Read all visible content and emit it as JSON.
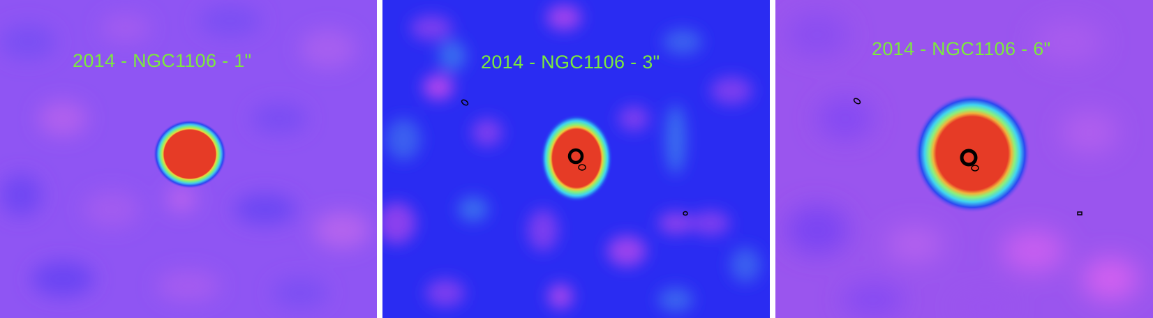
{
  "panels": [
    {
      "label": "2014 - NGC1106 - 1\""
    },
    {
      "label": "2014 - NGC1106 - 3\""
    },
    {
      "label": "2014 - NGC1106 - 6\""
    }
  ],
  "colors": {
    "label": "#7cea3c",
    "source_core": "#e63b26",
    "background_1": "#8f55f3",
    "background_2": "#2a2cf2",
    "background_3": "#9a55ee",
    "contour": "#000000"
  }
}
